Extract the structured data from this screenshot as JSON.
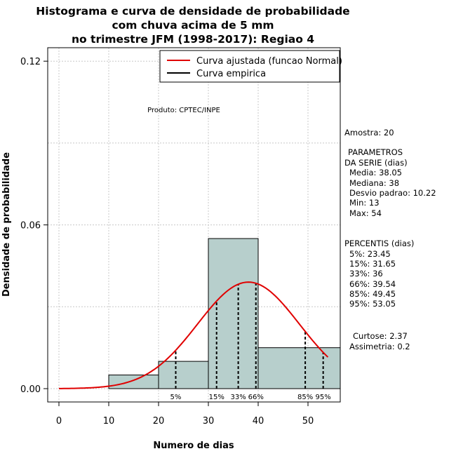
{
  "chart_data": {
    "type": "histogram",
    "title": [
      "Histograma e curva de densidade de probabilidade",
      "com chuva acima de 5 mm",
      "no trimestre JFM (1998-2017): Regiao 4"
    ],
    "xlabel": "Numero de dias",
    "ylabel": "Densidade de probabilidade",
    "xlim": [
      -2,
      56.5
    ],
    "ylim": [
      -0.005,
      0.124
    ],
    "xticks": [
      0,
      10,
      20,
      30,
      40,
      50
    ],
    "yticks": [
      0.0,
      0.06,
      0.12
    ],
    "ytick_labels": [
      "0.00",
      "0.06",
      "0.12"
    ],
    "grid": true,
    "bins": [
      {
        "x0": 10,
        "x1": 20,
        "density": 0.005
      },
      {
        "x0": 20,
        "x1": 30,
        "density": 0.01
      },
      {
        "x0": 30,
        "x1": 40,
        "density": 0.055
      },
      {
        "x0": 40,
        "x1": 56.5,
        "density": 0.015
      }
    ],
    "bar_color": "#b7cfcc",
    "fitted_curve": {
      "label": "Curva ajustada (funcao Normal)",
      "color": "#e00000",
      "mean": 38.05,
      "sd": 10.22,
      "x_from": 0,
      "x_to": 54
    },
    "empirical_curve": {
      "label": "Curva empirica",
      "color": "#000000"
    },
    "legend_position": "top-right",
    "product_label": "Produto: CPTEC/INPE",
    "percentile_lines": [
      {
        "label": "5%",
        "x": 23.45
      },
      {
        "label": "15%",
        "x": 31.65
      },
      {
        "label": "33%",
        "x": 36
      },
      {
        "label": "66%",
        "x": 39.54
      },
      {
        "label": "85%",
        "x": 49.45
      },
      {
        "label": "95%",
        "x": 53.05
      }
    ],
    "stats_panel": {
      "sample": "Amostra: 20",
      "params_title_1": "PARAMETROS",
      "params_title_2": "DA SERIE (dias)",
      "params": [
        "Media: 38.05",
        "Mediana: 38",
        "Desvio padrao: 10.22",
        "Min: 13",
        "Max: 54"
      ],
      "percentiles_title": "PERCENTIS (dias)",
      "percentiles": [
        "5%: 23.45",
        "15%: 31.65",
        "33%: 36",
        "66%: 39.54",
        "85%: 49.45",
        "95%: 53.05"
      ],
      "kurtosis": "Curtose: 2.37",
      "skewness": "Assimetria: 0.2"
    }
  }
}
